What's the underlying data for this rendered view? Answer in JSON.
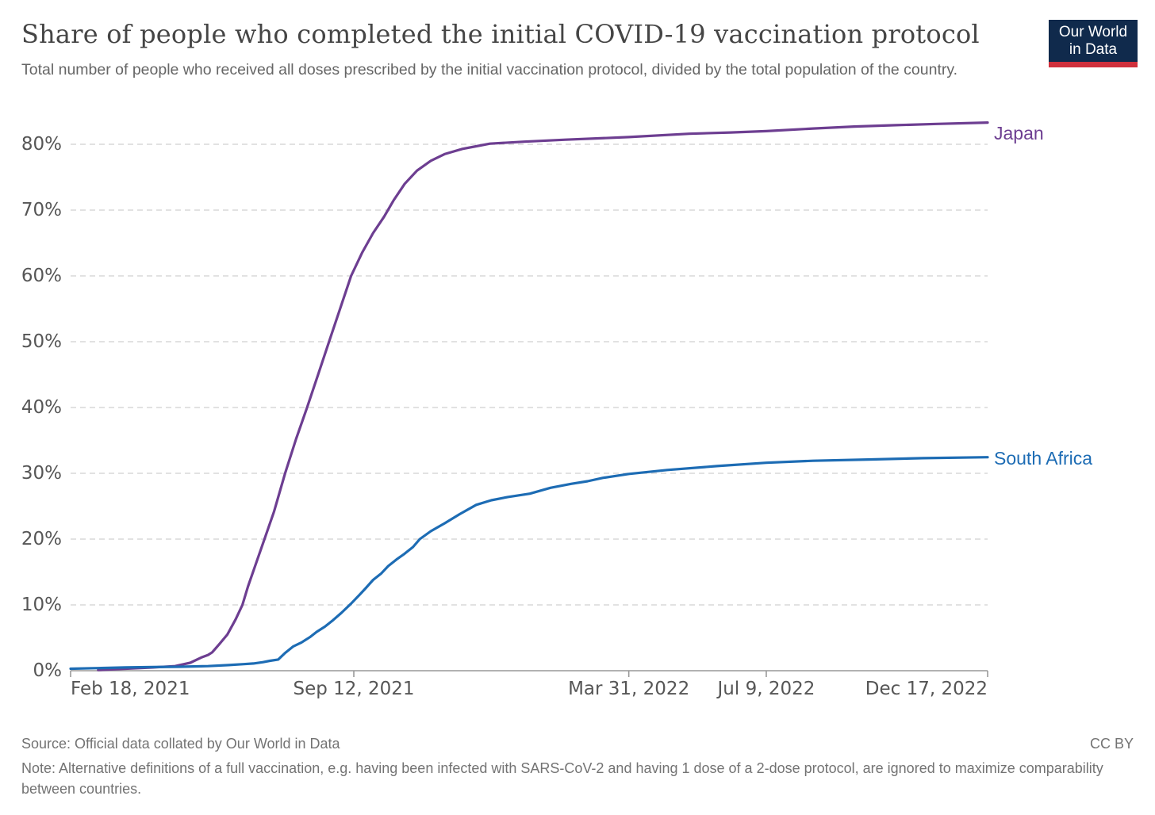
{
  "logo": {
    "line1": "Our World",
    "line2": "in Data",
    "background_color": "#102a4c",
    "stripe_color": "#d0303c"
  },
  "chart_data": {
    "type": "line",
    "title": "Share of people who completed the initial COVID-19 vaccination protocol",
    "subtitle": "Total number of people who received all doses prescribed by the initial vaccination protocol, divided by the total population of the country.",
    "legend_position": "right-end-labels",
    "grid": "dashed-horizontal",
    "x_axis": {
      "start_date": "Feb 18, 2021",
      "end_date": "Dec 17, 2022",
      "domain_days": 667,
      "ticks": [
        {
          "label": "Feb 18, 2021",
          "day": 0,
          "align": "start"
        },
        {
          "label": "Sep 12, 2021",
          "day": 206,
          "align": "middle"
        },
        {
          "label": "Mar 31, 2022",
          "day": 406,
          "align": "middle"
        },
        {
          "label": "Jul 9, 2022",
          "day": 506,
          "align": "middle"
        },
        {
          "label": "Dec 17, 2022",
          "day": 667,
          "align": "end"
        }
      ]
    },
    "y_axis": {
      "min": 0,
      "max": 80,
      "unit": "%",
      "ticks": [
        0,
        10,
        20,
        30,
        40,
        50,
        60,
        70,
        80
      ]
    },
    "series": [
      {
        "name": "Japan",
        "color": "#6d3e91",
        "end_value": 83.3,
        "label_offset_y": 13,
        "points": [
          [
            20,
            0.1
          ],
          [
            40,
            0.3
          ],
          [
            60,
            0.5
          ],
          [
            76,
            0.7
          ],
          [
            87,
            1.2
          ],
          [
            95,
            2.0
          ],
          [
            100,
            2.4
          ],
          [
            103,
            2.8
          ],
          [
            108,
            4.0
          ],
          [
            114,
            5.5
          ],
          [
            120,
            7.8
          ],
          [
            125,
            10.0
          ],
          [
            129,
            12.8
          ],
          [
            135,
            16.4
          ],
          [
            141,
            20.0
          ],
          [
            148,
            24.2
          ],
          [
            156,
            30.0
          ],
          [
            164,
            35.2
          ],
          [
            172,
            40.0
          ],
          [
            180,
            45.0
          ],
          [
            188,
            50.0
          ],
          [
            196,
            55.0
          ],
          [
            204,
            60.0
          ],
          [
            212,
            63.5
          ],
          [
            220,
            66.5
          ],
          [
            228,
            69.0
          ],
          [
            235,
            71.5
          ],
          [
            243,
            74.0
          ],
          [
            252,
            76.0
          ],
          [
            262,
            77.5
          ],
          [
            272,
            78.5
          ],
          [
            285,
            79.3
          ],
          [
            295,
            79.7
          ],
          [
            305,
            80.1
          ],
          [
            330,
            80.4
          ],
          [
            360,
            80.7
          ],
          [
            406,
            81.1
          ],
          [
            450,
            81.6
          ],
          [
            480,
            81.8
          ],
          [
            506,
            82.0
          ],
          [
            540,
            82.4
          ],
          [
            570,
            82.7
          ],
          [
            600,
            82.9
          ],
          [
            630,
            83.1
          ],
          [
            667,
            83.3
          ]
        ]
      },
      {
        "name": "South Africa",
        "color": "#1d6cb4",
        "end_value": 32.4,
        "label_offset_y": 1,
        "points": [
          [
            0,
            0.3
          ],
          [
            20,
            0.4
          ],
          [
            40,
            0.5
          ],
          [
            60,
            0.55
          ],
          [
            80,
            0.6
          ],
          [
            100,
            0.7
          ],
          [
            115,
            0.85
          ],
          [
            126,
            1.0
          ],
          [
            133,
            1.1
          ],
          [
            140,
            1.3
          ],
          [
            145,
            1.5
          ],
          [
            151,
            1.7
          ],
          [
            153,
            2.1
          ],
          [
            156,
            2.7
          ],
          [
            162,
            3.7
          ],
          [
            168,
            4.3
          ],
          [
            174,
            5.1
          ],
          [
            179,
            5.9
          ],
          [
            185,
            6.7
          ],
          [
            191,
            7.7
          ],
          [
            197,
            8.8
          ],
          [
            204,
            10.2
          ],
          [
            210,
            11.5
          ],
          [
            214,
            12.4
          ],
          [
            220,
            13.8
          ],
          [
            226,
            14.8
          ],
          [
            231,
            15.9
          ],
          [
            237,
            16.9
          ],
          [
            243,
            17.8
          ],
          [
            249,
            18.8
          ],
          [
            254,
            20.0
          ],
          [
            262,
            21.2
          ],
          [
            272,
            22.4
          ],
          [
            283,
            23.8
          ],
          [
            295,
            25.2
          ],
          [
            306,
            25.9
          ],
          [
            318,
            26.4
          ],
          [
            334,
            26.9
          ],
          [
            349,
            27.8
          ],
          [
            364,
            28.4
          ],
          [
            376,
            28.8
          ],
          [
            387,
            29.3
          ],
          [
            406,
            29.9
          ],
          [
            420,
            30.2
          ],
          [
            434,
            30.5
          ],
          [
            470,
            31.1
          ],
          [
            506,
            31.6
          ],
          [
            540,
            31.9
          ],
          [
            580,
            32.1
          ],
          [
            620,
            32.3
          ],
          [
            667,
            32.45
          ]
        ]
      }
    ]
  },
  "footer": {
    "source": "Source: Official data collated by Our World in Data",
    "license": "CC BY",
    "note": "Note: Alternative definitions of a full vaccination, e.g. having been infected with SARS-CoV-2 and having 1 dose of a 2-dose protocol, are ignored to maximize comparability between countries."
  }
}
